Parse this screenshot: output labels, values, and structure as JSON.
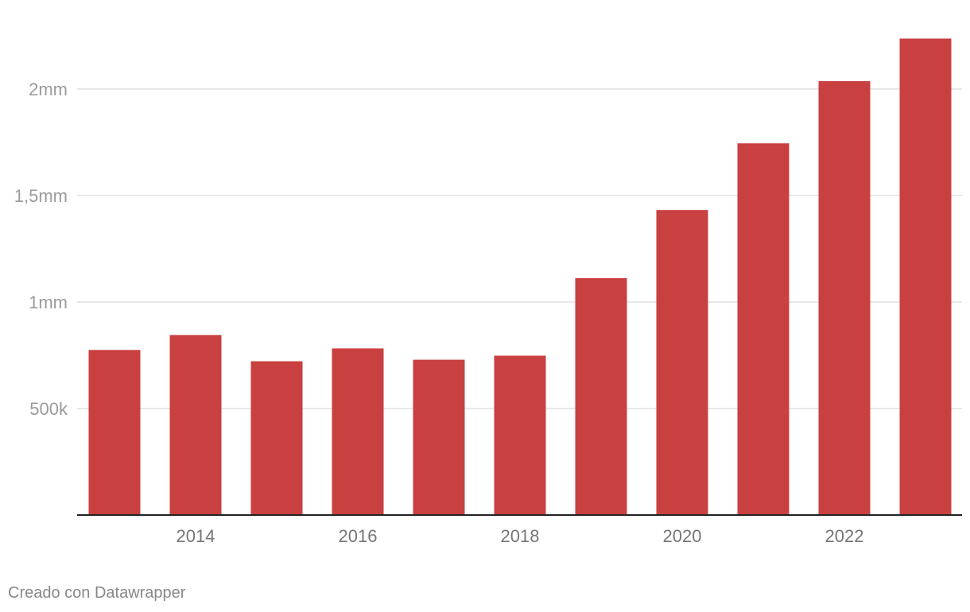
{
  "chart_data": {
    "type": "bar",
    "title": "",
    "xlabel": "",
    "ylabel": "",
    "categories": [
      "2013",
      "2014",
      "2015",
      "2016",
      "2017",
      "2018",
      "2019",
      "2020",
      "2021",
      "2022",
      "2023"
    ],
    "series": [
      {
        "values": [
          775000,
          845000,
          722000,
          782000,
          729000,
          748000,
          1112000,
          1432000,
          1745000,
          2037000,
          2237000
        ]
      }
    ],
    "ylim": [
      0,
      2300000
    ],
    "y_ticks": [
      {
        "value": 500000,
        "label": "500k"
      },
      {
        "value": 1000000,
        "label": "1mm"
      },
      {
        "value": 1500000,
        "label": "1,5mm"
      },
      {
        "value": 2000000,
        "label": "2mm"
      }
    ],
    "x_tick_labels": [
      "2014",
      "2016",
      "2018",
      "2020",
      "2022"
    ],
    "grid": "horizontal",
    "legend": "none",
    "colors": {
      "bar": "#c84040",
      "grid": "#e0e0e0",
      "axis": "#222222"
    }
  },
  "footer": {
    "credit": "Creado con Datawrapper"
  }
}
